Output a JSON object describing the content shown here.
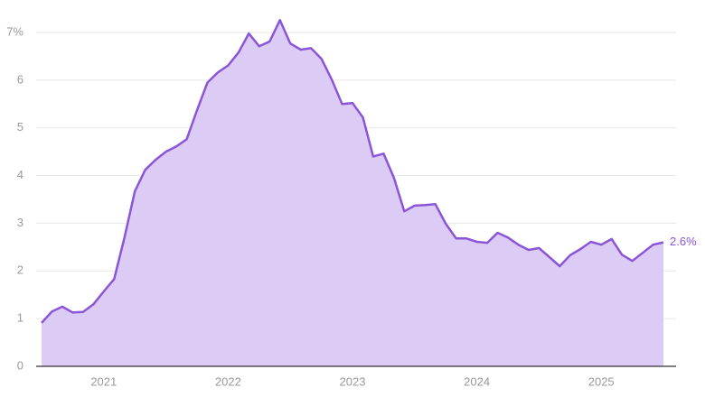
{
  "chart_data": {
    "type": "area",
    "categories": [
      null,
      null,
      null,
      null,
      null,
      null,
      "2021",
      null,
      null,
      null,
      null,
      null,
      null,
      null,
      null,
      null,
      null,
      null,
      "2022",
      null,
      null,
      null,
      null,
      null,
      null,
      null,
      null,
      null,
      null,
      null,
      "2023",
      null,
      null,
      null,
      null,
      null,
      null,
      null,
      null,
      null,
      null,
      null,
      "2024",
      null,
      null,
      null,
      null,
      null,
      null,
      null,
      null,
      null,
      null,
      null,
      "2025",
      null,
      null,
      null,
      null,
      null,
      null
    ],
    "series": [
      {
        "color": "#8a55d7",
        "fill": "#dccbf5",
        "values": [
          0.91,
          1.15,
          1.25,
          1.13,
          1.14,
          1.3,
          1.57,
          1.83,
          2.7,
          3.67,
          4.12,
          4.33,
          4.5,
          4.61,
          4.76,
          5.37,
          5.95,
          6.16,
          6.31,
          6.58,
          6.98,
          6.71,
          6.81,
          7.26,
          6.77,
          6.64,
          6.67,
          6.45,
          6.01,
          5.5,
          5.52,
          5.22,
          4.4,
          4.46,
          3.95,
          3.25,
          3.37,
          3.38,
          3.4,
          2.99,
          2.68,
          2.68,
          2.61,
          2.59,
          2.8,
          2.7,
          2.55,
          2.44,
          2.48,
          2.29,
          2.1,
          2.33,
          2.46,
          2.61,
          2.55,
          2.67,
          2.34,
          2.21,
          2.38,
          2.55,
          2.6
        ],
        "last_value_label": "2.6%"
      }
    ],
    "ylim": [
      0,
      7
    ],
    "yticks": [
      0,
      1,
      2,
      3,
      4,
      5,
      6,
      {
        "value": 7,
        "label": "7%"
      }
    ],
    "grid": true
  }
}
